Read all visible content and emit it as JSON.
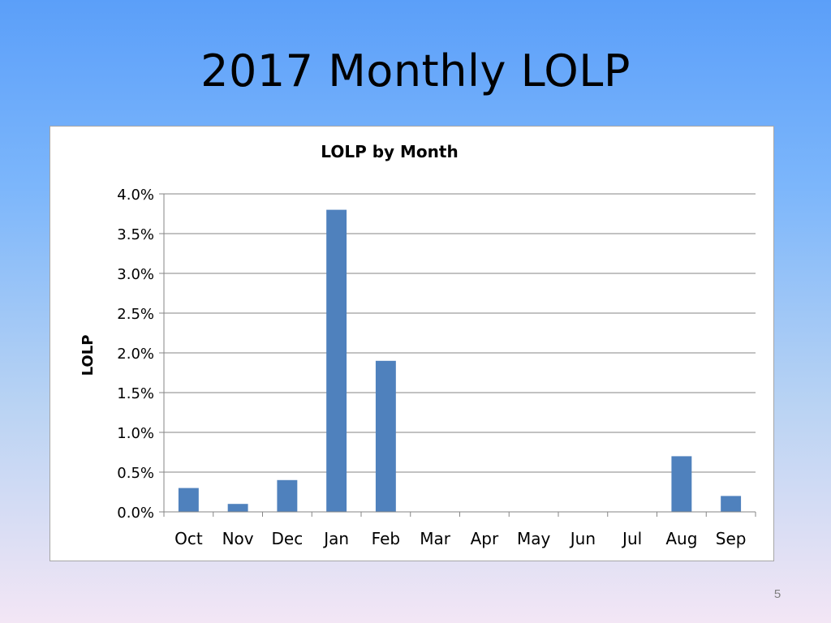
{
  "slide": {
    "title": "2017 Monthly LOLP",
    "page_number": "5"
  },
  "colors": {
    "bar": "#4f81bd",
    "gridline": "#868686",
    "axis": "#868686",
    "text": "#000000"
  },
  "chart_data": {
    "type": "bar",
    "title": "LOLP by Month",
    "xlabel": "",
    "ylabel": "LOLP",
    "categories": [
      "Oct",
      "Nov",
      "Dec",
      "Jan",
      "Feb",
      "Mar",
      "Apr",
      "May",
      "Jun",
      "Jul",
      "Aug",
      "Sep"
    ],
    "values": [
      0.003,
      0.001,
      0.004,
      0.038,
      0.019,
      0,
      0,
      0,
      0,
      0,
      0.007,
      0.002
    ],
    "ylim": [
      0,
      0.04
    ],
    "yticks": [
      0,
      0.005,
      0.01,
      0.015,
      0.02,
      0.025,
      0.03,
      0.035,
      0.04
    ],
    "ytick_labels": [
      "0.0%",
      "0.5%",
      "1.0%",
      "1.5%",
      "2.0%",
      "2.5%",
      "3.0%",
      "3.5%",
      "4.0%"
    ],
    "grid": true,
    "legend": "none"
  }
}
